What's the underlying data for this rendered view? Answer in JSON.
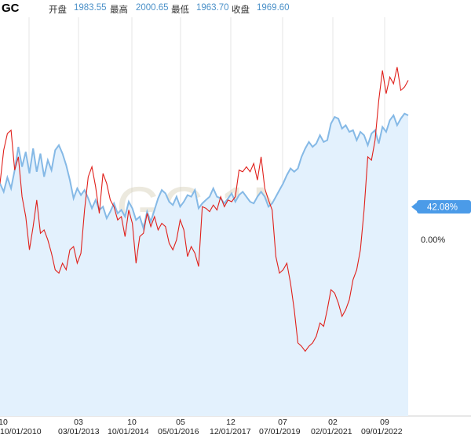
{
  "header": {
    "symbol": "GC",
    "open_label": "开盘",
    "open": "1983.55",
    "high_label": "最高",
    "high": "2000.65",
    "low_label": "最低",
    "low": "1963.70",
    "close_label": "收盘",
    "close": "1969.60"
  },
  "watermark": "GC,1N",
  "badge": "42.08%",
  "zero_label": "0.00%",
  "colors": {
    "blue": "#85b9e6",
    "red": "#e0201b",
    "fill": "#e3f1fd",
    "badge": "#4b9be8"
  },
  "chart_data": {
    "type": "line",
    "x_ticks_top": [
      "10",
      "03",
      "10",
      "05",
      "12",
      "07",
      "02",
      "09"
    ],
    "x_ticks_bottom": [
      "10/01/2010",
      "03/01/2013",
      "10/01/2014",
      "05/01/2016",
      "12/01/2017",
      "07/01/2019",
      "02/01/2021",
      "09/01/2022"
    ],
    "series": [
      {
        "color": "blue",
        "values": [
          0.0,
          -2.5,
          1.8,
          -1.5,
          4.0,
          11.0,
          5.0,
          9.5,
          3.0,
          10.5,
          3.5,
          9.0,
          2.0,
          7.0,
          4.0,
          10.0,
          11.5,
          9.0,
          5.5,
          1.0,
          -4.5,
          -1.5,
          -3.5,
          -2.0,
          -4.5,
          -7.5,
          -5.0,
          -8.0,
          -7.0,
          -10.5,
          -8.5,
          -6.0,
          -9.0,
          -8.0,
          -10.0,
          -5.5,
          -7.5,
          -11.0,
          -10.0,
          -13.5,
          -8.5,
          -11.5,
          -8.0,
          -4.5,
          -2.0,
          -3.0,
          -5.5,
          -6.5,
          -4.0,
          -7.0,
          -5.5,
          -3.5,
          -4.0,
          -2.0,
          -7.5,
          -6.0,
          -5.0,
          -4.0,
          -1.5,
          -4.0,
          -4.5,
          -6.0,
          -4.5,
          -3.0,
          -5.5,
          -3.5,
          -2.5,
          -4.0,
          -5.5,
          -6.0,
          -4.0,
          -2.5,
          -4.0,
          -7.0,
          -6.0,
          -4.0,
          -2.0,
          0.0,
          2.5,
          4.5,
          3.5,
          4.5,
          8.0,
          10.5,
          12.5,
          11.0,
          12.0,
          14.5,
          12.5,
          13.0,
          18.0,
          20.0,
          19.5,
          16.5,
          17.5,
          15.5,
          16.0,
          13.0,
          15.5,
          14.5,
          11.5,
          15.0,
          16.0,
          12.0,
          17.0,
          15.5,
          19.0,
          20.5,
          17.5,
          19.5,
          21.0,
          20.5
        ]
      },
      {
        "color": "red",
        "values": [
          0.0,
          10.0,
          15.0,
          16.0,
          4.0,
          8.0,
          -4.0,
          -10.0,
          -20.0,
          -13.0,
          -5.0,
          -15.0,
          -14.0,
          -17.0,
          -21.0,
          -26.0,
          -27.0,
          -24.0,
          -26.0,
          -20.0,
          -19.0,
          -24.0,
          -21.0,
          -8.0,
          2.0,
          5.0,
          -1.0,
          -9.0,
          3.0,
          0.0,
          -5.0,
          -7.0,
          -11.0,
          -10.0,
          -16.0,
          -8.0,
          -12.0,
          -24.0,
          -16.0,
          -15.0,
          -9.0,
          -13.0,
          -10.0,
          -14.0,
          -12.0,
          -13.0,
          -18.0,
          -20.0,
          -17.0,
          -11.0,
          -14.0,
          -22.0,
          -19.0,
          -21.0,
          -25.0,
          -7.0,
          -7.5,
          -8.5,
          -6.5,
          -8.0,
          -4.0,
          -7.0,
          -5.0,
          -5.5,
          -4.0,
          4.0,
          3.5,
          5.0,
          3.5,
          6.0,
          1.0,
          8.0,
          -1.5,
          -5.0,
          -8.0,
          -22.0,
          -27.0,
          -26.0,
          -24.0,
          -30.0,
          -38.0,
          -48.0,
          -49.0,
          -50.5,
          -49.0,
          -48.0,
          -46.0,
          -42.0,
          -43.0,
          -38.0,
          -32.0,
          -33.0,
          -36.0,
          -40.0,
          -38.0,
          -35.0,
          -29.0,
          -26.0,
          -20.0,
          -8.0,
          8.0,
          7.0,
          13.0,
          25.0,
          34.0,
          27.0,
          32.0,
          30.0,
          35.0,
          28.0,
          29.0,
          31.0
        ]
      }
    ],
    "ylim": [
      -70,
      50
    ]
  }
}
